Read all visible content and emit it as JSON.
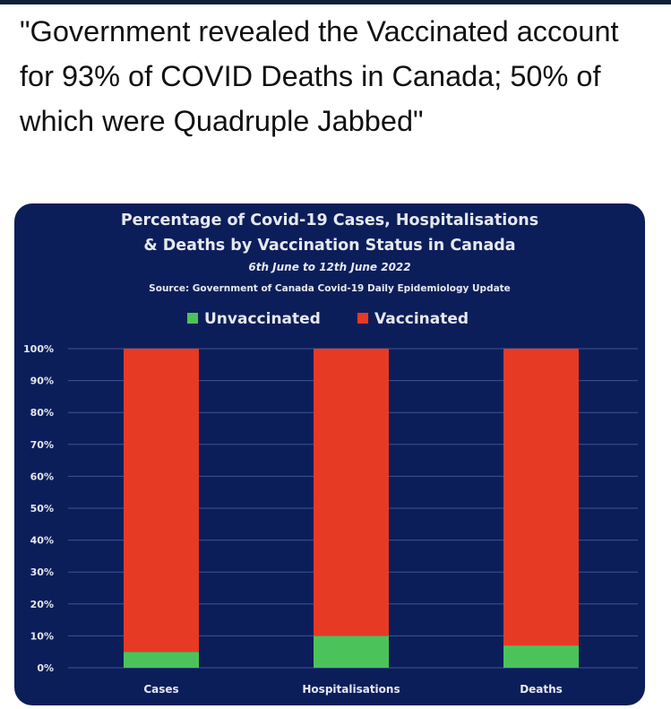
{
  "post": {
    "headline": "\"Government revealed the Vaccinated account for 93% of COVID Deaths in Canada; 50% of which were Quadruple Jabbed\""
  },
  "colors": {
    "background_card": "#0c1e5a",
    "vaccinated": "#e63a24",
    "unvaccinated": "#4cc35a",
    "text": "#e6e8ef"
  },
  "chart_data": {
    "type": "bar",
    "stacked": true,
    "title_line1": "Percentage of Covid-19 Cases, Hospitalisations",
    "title_line2": "& Deaths by Vaccination Status in Canada",
    "subtitle": "6th June to 12th June 2022",
    "source": "Source: Government of Canada  Covid-19 Daily Epidemiology Update",
    "categories": [
      "Cases",
      "Hospitalisations",
      "Deaths"
    ],
    "series": [
      {
        "name": "Unvaccinated",
        "values": [
          5,
          10,
          7
        ],
        "color": "#4cc35a"
      },
      {
        "name": "Vaccinated",
        "values": [
          95,
          90,
          93
        ],
        "color": "#e63a24"
      }
    ],
    "ylim": [
      0,
      100
    ],
    "yticks": [
      "0%",
      "10%",
      "20%",
      "30%",
      "40%",
      "50%",
      "60%",
      "70%",
      "80%",
      "90%",
      "100%"
    ],
    "legend_position": "top",
    "grid": true
  }
}
